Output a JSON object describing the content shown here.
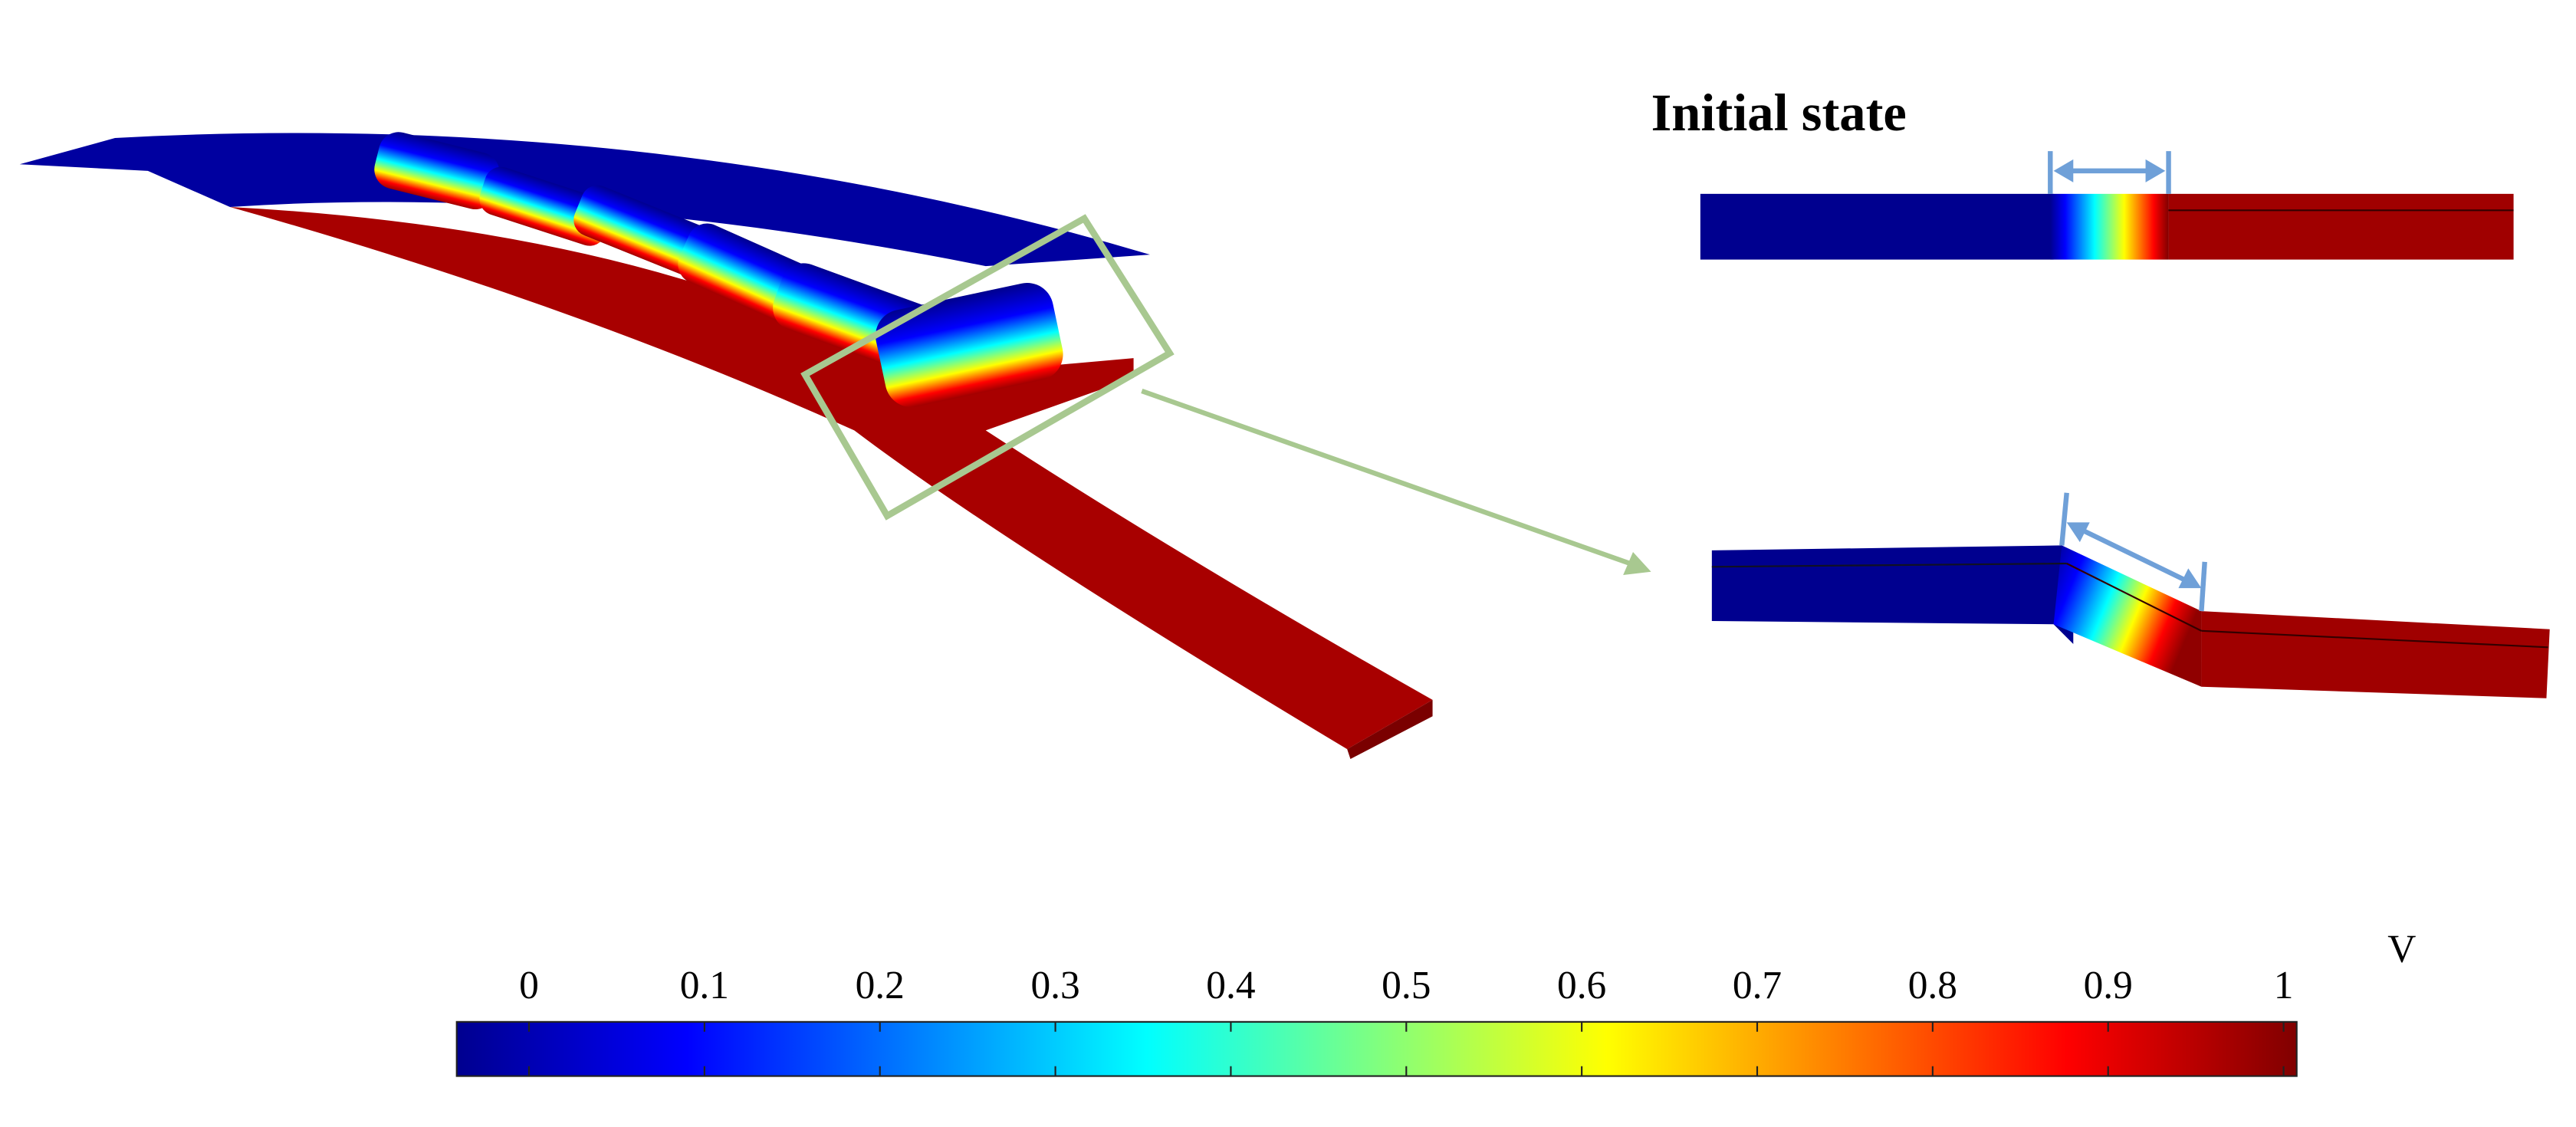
{
  "label": "Initial state",
  "colorbar": {
    "unit": "V",
    "lim": [
      0,
      1
    ],
    "ticks": [
      0,
      0.1,
      0.2,
      0.3,
      0.4,
      0.5,
      0.6,
      0.7,
      0.8,
      0.9,
      1
    ]
  }
}
